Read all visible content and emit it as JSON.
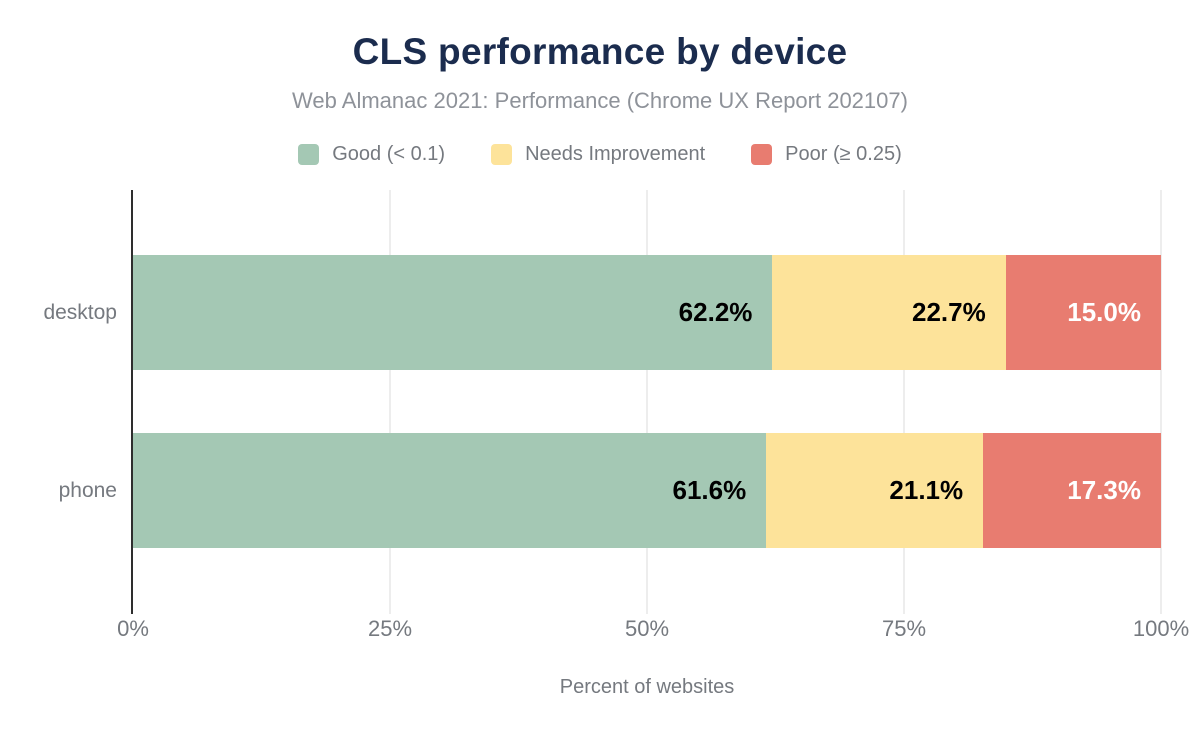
{
  "chart_data": {
    "type": "bar",
    "orientation": "horizontal",
    "stacked": true,
    "title": "CLS performance by device",
    "subtitle": "Web Almanac 2021: Performance (Chrome UX Report 202107)",
    "xlabel": "Percent of websites",
    "ylabel": "",
    "xlim": [
      0,
      100
    ],
    "grid": "vertical",
    "legend_position": "top",
    "categories": [
      "desktop",
      "phone"
    ],
    "series": [
      {
        "name": "Good (< 0.1)",
        "color": "#a4c8b4",
        "text_color": "#000000",
        "values": [
          62.2,
          61.6
        ],
        "labels": [
          "62.2%",
          "61.6%"
        ]
      },
      {
        "name": "Needs Improvement",
        "color": "#fde39a",
        "text_color": "#000000",
        "values": [
          22.7,
          21.1
        ],
        "labels": [
          "22.7%",
          "21.1%"
        ]
      },
      {
        "name": "Poor (≥ 0.25)",
        "color": "#e87c70",
        "text_color": "#ffffff",
        "values": [
          15.0,
          17.3
        ],
        "labels": [
          "15.0%",
          "17.3%"
        ]
      }
    ],
    "x_ticks": [
      {
        "value": 0,
        "label": "0%"
      },
      {
        "value": 25,
        "label": "25%"
      },
      {
        "value": 50,
        "label": "50%"
      },
      {
        "value": 75,
        "label": "75%"
      },
      {
        "value": 100,
        "label": "100%"
      }
    ]
  },
  "style": {
    "background": "#ffffff",
    "title_color": "#1b2c4e",
    "subtitle_color": "#8e9299",
    "label_color": "#75797f",
    "gridline_color": "#ededed",
    "axis_color": "#2e2e2e"
  }
}
